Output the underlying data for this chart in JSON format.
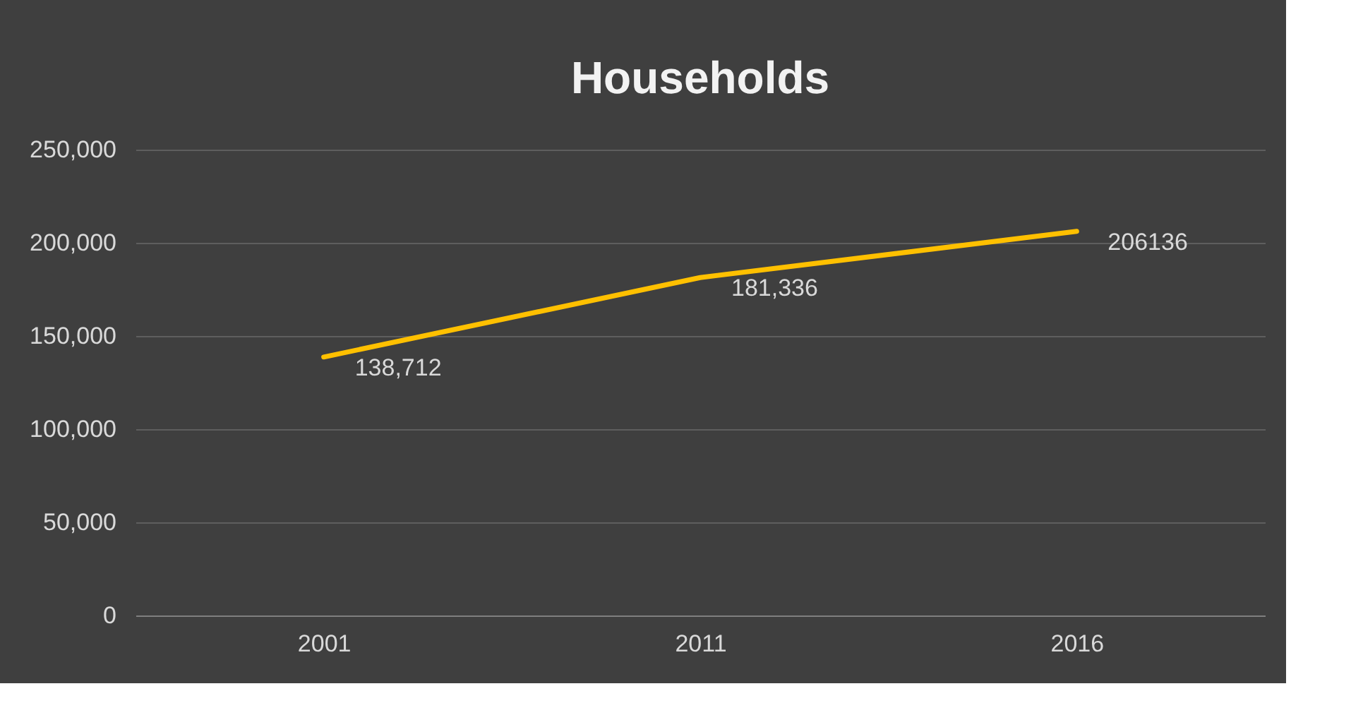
{
  "chart_data": {
    "type": "line",
    "title": "Households",
    "categories": [
      "2001",
      "2011",
      "2016"
    ],
    "series": [
      {
        "color": "#ffc000",
        "values": [
          138712,
          181336,
          206136
        ],
        "value_labels": [
          "138,712",
          "181,336",
          "206136"
        ]
      }
    ],
    "ylim": [
      0,
      250000
    ],
    "yticks": [
      {
        "value": 0,
        "label": "0"
      },
      {
        "value": 50000,
        "label": "50,000"
      },
      {
        "value": 100000,
        "label": "100,000"
      },
      {
        "value": 150000,
        "label": "150,000"
      },
      {
        "value": 200000,
        "label": "200,000"
      },
      {
        "value": 250000,
        "label": "250,000"
      }
    ],
    "grid": "y",
    "marker": "none",
    "line_style": "solid"
  }
}
